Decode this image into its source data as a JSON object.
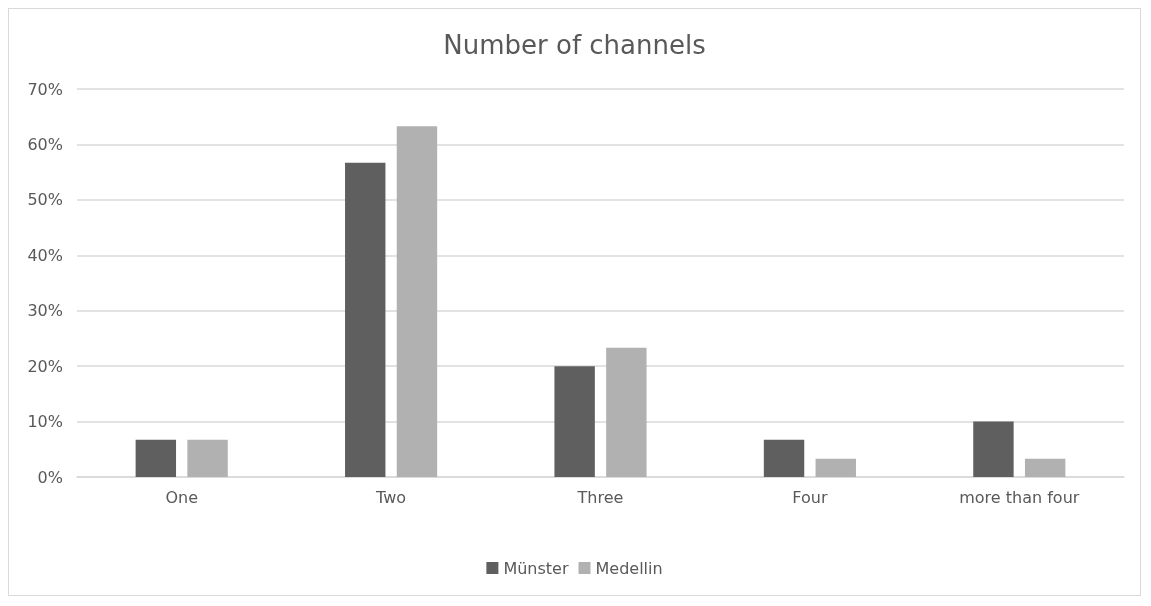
{
  "chart_data": {
    "type": "bar",
    "title": "Number of channels",
    "categories": [
      "One",
      "Two",
      "Three",
      "Four",
      "more than four"
    ],
    "series": [
      {
        "name": "Münster",
        "color": "#5f5f5f",
        "values": [
          6.7,
          56.7,
          20,
          6.7,
          10
        ]
      },
      {
        "name": "Medellin",
        "color": "#b1b1b1",
        "values": [
          6.7,
          63.3,
          23.3,
          3.3,
          3.3
        ]
      }
    ],
    "ylim": [
      0,
      70
    ],
    "yticks": [
      {
        "value": 0,
        "label": "0%"
      },
      {
        "value": 10,
        "label": "10%"
      },
      {
        "value": 20,
        "label": "20%"
      },
      {
        "value": 30,
        "label": "30%"
      },
      {
        "value": 40,
        "label": "40%"
      },
      {
        "value": 50,
        "label": "50%"
      },
      {
        "value": 60,
        "label": "60%"
      },
      {
        "value": 70,
        "label": "70%"
      }
    ],
    "grid": "y",
    "legend": "bottom"
  }
}
